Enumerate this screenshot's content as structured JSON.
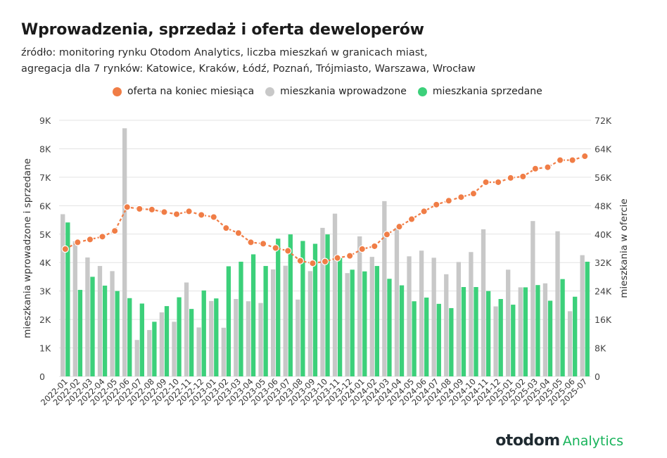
{
  "title": "Wprowadzenia, sprzedaż i oferta deweloperów",
  "subtitle_line1": "źródło: monitoring rynku Otodom Analytics, liczba mieszkań w granicach miast,",
  "subtitle_line2": "agregacja dla 7 rynków: Katowice, Kraków, Łódź, Poznań, Trójmiasto, Warszawa, Wrocław",
  "brand": {
    "name": "otodom",
    "product": "Analytics"
  },
  "colors": {
    "offer": "#f07d46",
    "introduced": "#c8c8c8",
    "sold": "#3cd07a",
    "grid": "#e3e3e3"
  },
  "chart_data": {
    "type": "bar",
    "ylabel": "mieszkania wprowadzone i sprzedane",
    "y2label": "mieszkania w ofercie",
    "ylim": [
      0,
      9000
    ],
    "y2lim": [
      0,
      72000
    ],
    "yticks": [
      "0",
      "1K",
      "2K",
      "3K",
      "4K",
      "5K",
      "6K",
      "7K",
      "8K",
      "9K"
    ],
    "y2ticks": [
      "0",
      "8K",
      "16K",
      "24K",
      "32K",
      "40K",
      "48K",
      "56K",
      "64K",
      "72K"
    ],
    "grid": true,
    "legend_position": "top",
    "categories": [
      "2022-01",
      "2022-02",
      "2022-03",
      "2022-04",
      "2022-05",
      "2022-06",
      "2022-07",
      "2022-08",
      "2022-09",
      "2022-10",
      "2022-11",
      "2022-12",
      "2023-01",
      "2023-02",
      "2023-03",
      "2023-04",
      "2023-05",
      "2023-06",
      "2023-07",
      "2023-08",
      "2023-09",
      "2023-10",
      "2023-11",
      "2023-12",
      "2024-01",
      "2024-02",
      "2024-03",
      "2024-04",
      "2024-05",
      "2024-06",
      "2024-07",
      "2024-08",
      "2024-09",
      "2024-10",
      "2024-11",
      "2024-12",
      "2025-01",
      "2025-02",
      "2025-03",
      "2025-04",
      "2025-05",
      "2025-06",
      "2025-07"
    ],
    "series": [
      {
        "name": "oferta na koniec miesiąca",
        "type": "line",
        "axis": "right",
        "values": [
          35800,
          37700,
          38500,
          39300,
          40900,
          47600,
          47100,
          46900,
          46200,
          45600,
          46400,
          45400,
          44800,
          41700,
          40300,
          37700,
          37300,
          36100,
          35300,
          32500,
          31800,
          32300,
          33300,
          33900,
          35800,
          36600,
          39900,
          42100,
          44200,
          46400,
          48300,
          49400,
          50400,
          51400,
          54600,
          54600,
          55800,
          56200,
          58400,
          58800,
          60800,
          60800,
          61900
        ]
      },
      {
        "name": "mieszkania wprowadzone",
        "type": "bar",
        "axis": "left",
        "values": [
          5700,
          4750,
          4180,
          3880,
          3700,
          8720,
          1280,
          1630,
          2250,
          1920,
          3300,
          1720,
          2650,
          1710,
          2720,
          2640,
          2580,
          3760,
          3890,
          2700,
          3700,
          5220,
          5720,
          3630,
          4920,
          4200,
          6160,
          5220,
          4220,
          4420,
          4170,
          3590,
          4020,
          4370,
          5170,
          2460,
          3750,
          3130,
          5460,
          3270,
          5100,
          2290,
          4260
        ]
      },
      {
        "name": "mieszkania sprzedane",
        "type": "bar",
        "axis": "left",
        "values": [
          5410,
          3040,
          3500,
          3190,
          3000,
          2750,
          2560,
          1920,
          2470,
          2780,
          2370,
          3020,
          2740,
          3870,
          4030,
          4290,
          3880,
          4840,
          4990,
          4760,
          4660,
          4990,
          4160,
          3750,
          3690,
          3880,
          3430,
          3200,
          2640,
          2770,
          2550,
          2400,
          3140,
          3140,
          3000,
          2720,
          2520,
          3130,
          3210,
          2660,
          3420,
          2800,
          4030
        ]
      }
    ]
  }
}
